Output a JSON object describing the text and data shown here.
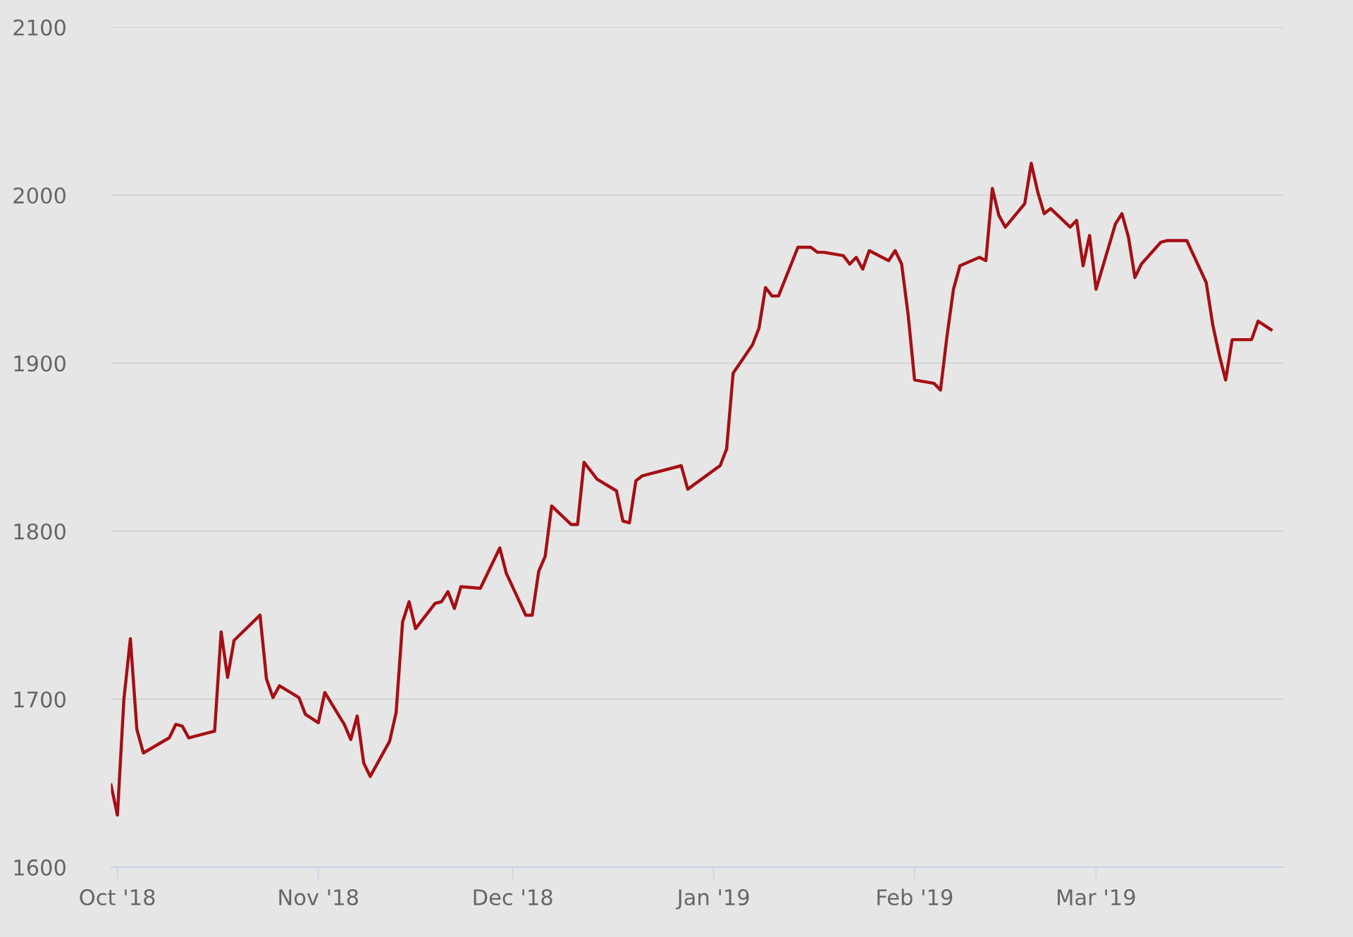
{
  "chart_data": {
    "type": "line",
    "x": [
      "2018-09-30",
      "2018-10-01",
      "2018-10-02",
      "2018-10-03",
      "2018-10-04",
      "2018-10-05",
      "2018-10-09",
      "2018-10-10",
      "2018-10-11",
      "2018-10-12",
      "2018-10-15",
      "2018-10-16",
      "2018-10-17",
      "2018-10-18",
      "2018-10-19",
      "2018-10-23",
      "2018-10-24",
      "2018-10-25",
      "2018-10-26",
      "2018-10-29",
      "2018-10-30",
      "2018-11-01",
      "2018-11-02",
      "2018-11-05",
      "2018-11-06",
      "2018-11-07",
      "2018-11-08",
      "2018-11-09",
      "2018-11-12",
      "2018-11-13",
      "2018-11-14",
      "2018-11-15",
      "2018-11-16",
      "2018-11-19",
      "2018-11-20",
      "2018-11-21",
      "2018-11-22",
      "2018-11-23",
      "2018-11-26",
      "2018-11-29",
      "2018-11-30",
      "2018-12-03",
      "2018-12-04",
      "2018-12-05",
      "2018-12-06",
      "2018-12-07",
      "2018-12-10",
      "2018-12-11",
      "2018-12-12",
      "2018-12-14",
      "2018-12-17",
      "2018-12-18",
      "2018-12-19",
      "2018-12-20",
      "2018-12-21",
      "2018-12-27",
      "2018-12-28",
      "2019-01-02",
      "2019-01-03",
      "2019-01-04",
      "2019-01-07",
      "2019-01-08",
      "2019-01-09",
      "2019-01-10",
      "2019-01-11",
      "2019-01-14",
      "2019-01-16",
      "2019-01-17",
      "2019-01-18",
      "2019-01-21",
      "2019-01-22",
      "2019-01-23",
      "2019-01-24",
      "2019-01-25",
      "2019-01-28",
      "2019-01-29",
      "2019-01-30",
      "2019-01-31",
      "2019-02-01",
      "2019-02-04",
      "2019-02-05",
      "2019-02-06",
      "2019-02-07",
      "2019-02-08",
      "2019-02-11",
      "2019-02-12",
      "2019-02-13",
      "2019-02-14",
      "2019-02-15",
      "2019-02-18",
      "2019-02-19",
      "2019-02-20",
      "2019-02-21",
      "2019-02-22",
      "2019-02-25",
      "2019-02-26",
      "2019-02-27",
      "2019-02-28",
      "2019-03-01",
      "2019-03-04",
      "2019-03-05",
      "2019-03-06",
      "2019-03-07",
      "2019-03-08",
      "2019-03-11",
      "2019-03-12",
      "2019-03-15",
      "2019-03-18",
      "2019-03-19",
      "2019-03-20",
      "2019-03-21",
      "2019-03-22",
      "2019-03-25",
      "2019-03-26",
      "2019-03-28"
    ],
    "series": [
      {
        "color": "#a50f15",
        "values": [
          1649,
          1631,
          1700,
          1736,
          1682,
          1668,
          1677,
          1685,
          1684,
          1677,
          1680,
          1681,
          1740,
          1713,
          1735,
          1750,
          1712,
          1701,
          1708,
          1701,
          1691,
          1686,
          1704,
          1685,
          1676,
          1690,
          1662,
          1654,
          1675,
          1692,
          1746,
          1758,
          1742,
          1757,
          1758,
          1764,
          1754,
          1767,
          1766,
          1790,
          1775,
          1750,
          1750,
          1776,
          1785,
          1815,
          1804,
          1804,
          1841,
          1831,
          1824,
          1806,
          1805,
          1830,
          1833,
          1839,
          1825,
          1839,
          1849,
          1894,
          1911,
          1921,
          1945,
          1940,
          1940,
          1969,
          1969,
          1966,
          1966,
          1964,
          1959,
          1963,
          1956,
          1967,
          1961,
          1967,
          1959,
          1929,
          1890,
          1888,
          1884,
          1916,
          1944,
          1958,
          1963,
          1961,
          2004,
          1988,
          1981,
          1995,
          2019,
          2002,
          1989,
          1992,
          1981,
          1985,
          1958,
          1976,
          1944,
          1983,
          1989,
          1975,
          1951,
          1959,
          1972,
          1973,
          1973,
          1948,
          1923,
          1905,
          1890,
          1914,
          1914,
          1925,
          1920
        ]
      }
    ],
    "xlim": [
      "2018-09-30",
      "2019-03-30"
    ],
    "xticks": [
      {
        "value": "2018-10-01",
        "label": "Oct '18"
      },
      {
        "value": "2018-11-01",
        "label": "Nov '18"
      },
      {
        "value": "2018-12-01",
        "label": "Dec '18"
      },
      {
        "value": "2019-01-01",
        "label": "Jan '19"
      },
      {
        "value": "2019-02-01",
        "label": "Feb '19"
      },
      {
        "value": "2019-03-01",
        "label": "Mar '19"
      }
    ],
    "ylim": [
      1600,
      2100
    ],
    "yticks": [
      1600,
      1700,
      1800,
      1900,
      2000,
      2100
    ],
    "grid": "y",
    "marker": "none",
    "line_style": "solid"
  }
}
